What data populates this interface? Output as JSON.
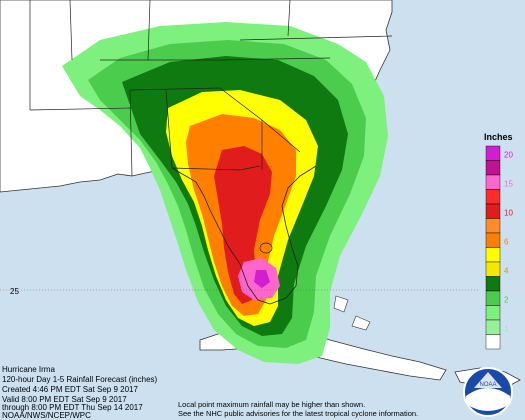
{
  "map": {
    "title": "Hurricane Irma",
    "forecast_line": "120-hour Day 1-5 Rainfall Forecast (inches)",
    "created": "Created 4:46 PM EDT Sat Sep 9 2017",
    "valid": "Valid 8:00 PM EDT Sat Sep 9 2017",
    "through": "through 8:00 PM EDT Thu Sep 14 2017",
    "agency": "NOAA/NWS/NCEP/WPC",
    "note_1": "Local point maximum rainfall may be higher than shown.",
    "note_2": "See the NHC public advisories for the latest tropical cyclone information.",
    "latitude_label": "25",
    "logo_text": "NOAA"
  },
  "legend": {
    "title": "Inches",
    "items": [
      {
        "label": "20",
        "color": "#d21ed2"
      },
      {
        "label": "",
        "color": "#c21290"
      },
      {
        "label": "15",
        "color": "#ff66cc"
      },
      {
        "label": "",
        "color": "#ff2a2a"
      },
      {
        "label": "10",
        "color": "#e11c1c"
      },
      {
        "label": "",
        "color": "#ff8c2a"
      },
      {
        "label": "6",
        "color": "#ff8000"
      },
      {
        "label": "",
        "color": "#ffff00"
      },
      {
        "label": "4",
        "color": "#f4e800"
      },
      {
        "label": "",
        "color": "#0f7a0f"
      },
      {
        "label": "2",
        "color": "#4ccc4c"
      },
      {
        "label": "",
        "color": "#7ef07e"
      },
      {
        "label": "1",
        "color": "#98f098"
      },
      {
        "label": "",
        "color": "#ffffff"
      }
    ]
  },
  "colors": {
    "ocean": "#cce0f0",
    "land": "#ffffff",
    "green_light": "#7ef07e",
    "green_mid": "#4ccc4c",
    "green_dark": "#0f7a0f",
    "yellow": "#ffff00",
    "orange": "#ff8000",
    "red": "#e11c1c",
    "pink": "#ff66cc",
    "magenta": "#d21ed2"
  }
}
